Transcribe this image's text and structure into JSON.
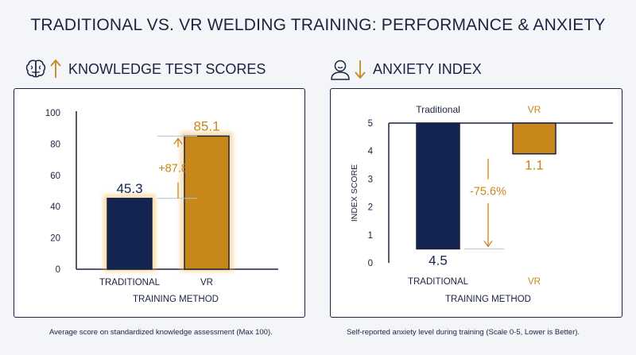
{
  "title": "TRADITIONAL VS. VR WELDING TRAINING: PERFORMANCE & ANXIETY",
  "colors": {
    "navy": "#142450",
    "orange": "#c8871a",
    "text": "#1b2340",
    "glow": "#f2b64a"
  },
  "sections": [
    {
      "heading": "KNOWLEDGE TEST SCORES",
      "icons": [
        "brain-icon",
        "arrow-up-icon"
      ],
      "caption": "Average score on standardized knowledge assessment (Max 100)."
    },
    {
      "heading": "ANXIETY INDEX",
      "icons": [
        "person-icon",
        "arrow-down-icon"
      ],
      "caption": "Self-reported anxiety level during training (Scale 0-5, Lower is Better)."
    }
  ],
  "chart_data": [
    {
      "type": "bar",
      "categories": [
        "TRADITIONAL",
        "VR"
      ],
      "values": [
        45.3,
        85.1
      ],
      "value_labels": [
        "45.3",
        "85.1"
      ],
      "xlabel": "TRAINING METHOD",
      "ylabel": "",
      "ylim": [
        0,
        100
      ],
      "yticks": [
        "0",
        "20",
        "40",
        "60",
        "80",
        "100"
      ],
      "annotation": "+87.8%",
      "bar_colors": [
        "#142450",
        "#c8871a"
      ]
    },
    {
      "type": "bar",
      "categories": [
        "TRADITIONAL",
        "VR"
      ],
      "top_labels": [
        "Traditional",
        "VR"
      ],
      "values": [
        4.5,
        1.1
      ],
      "value_labels": [
        "4.5",
        "1.1"
      ],
      "xlabel": "TRAINING METHOD",
      "ylabel": "INDEX SCORE",
      "ylim": [
        0,
        5
      ],
      "yticks": [
        "0",
        "1",
        "2",
        "3",
        "4",
        "5"
      ],
      "orientation": "bars hang from top (5) downward",
      "annotation": "-75.6%",
      "bar_colors": [
        "#142450",
        "#c8871a"
      ]
    }
  ]
}
